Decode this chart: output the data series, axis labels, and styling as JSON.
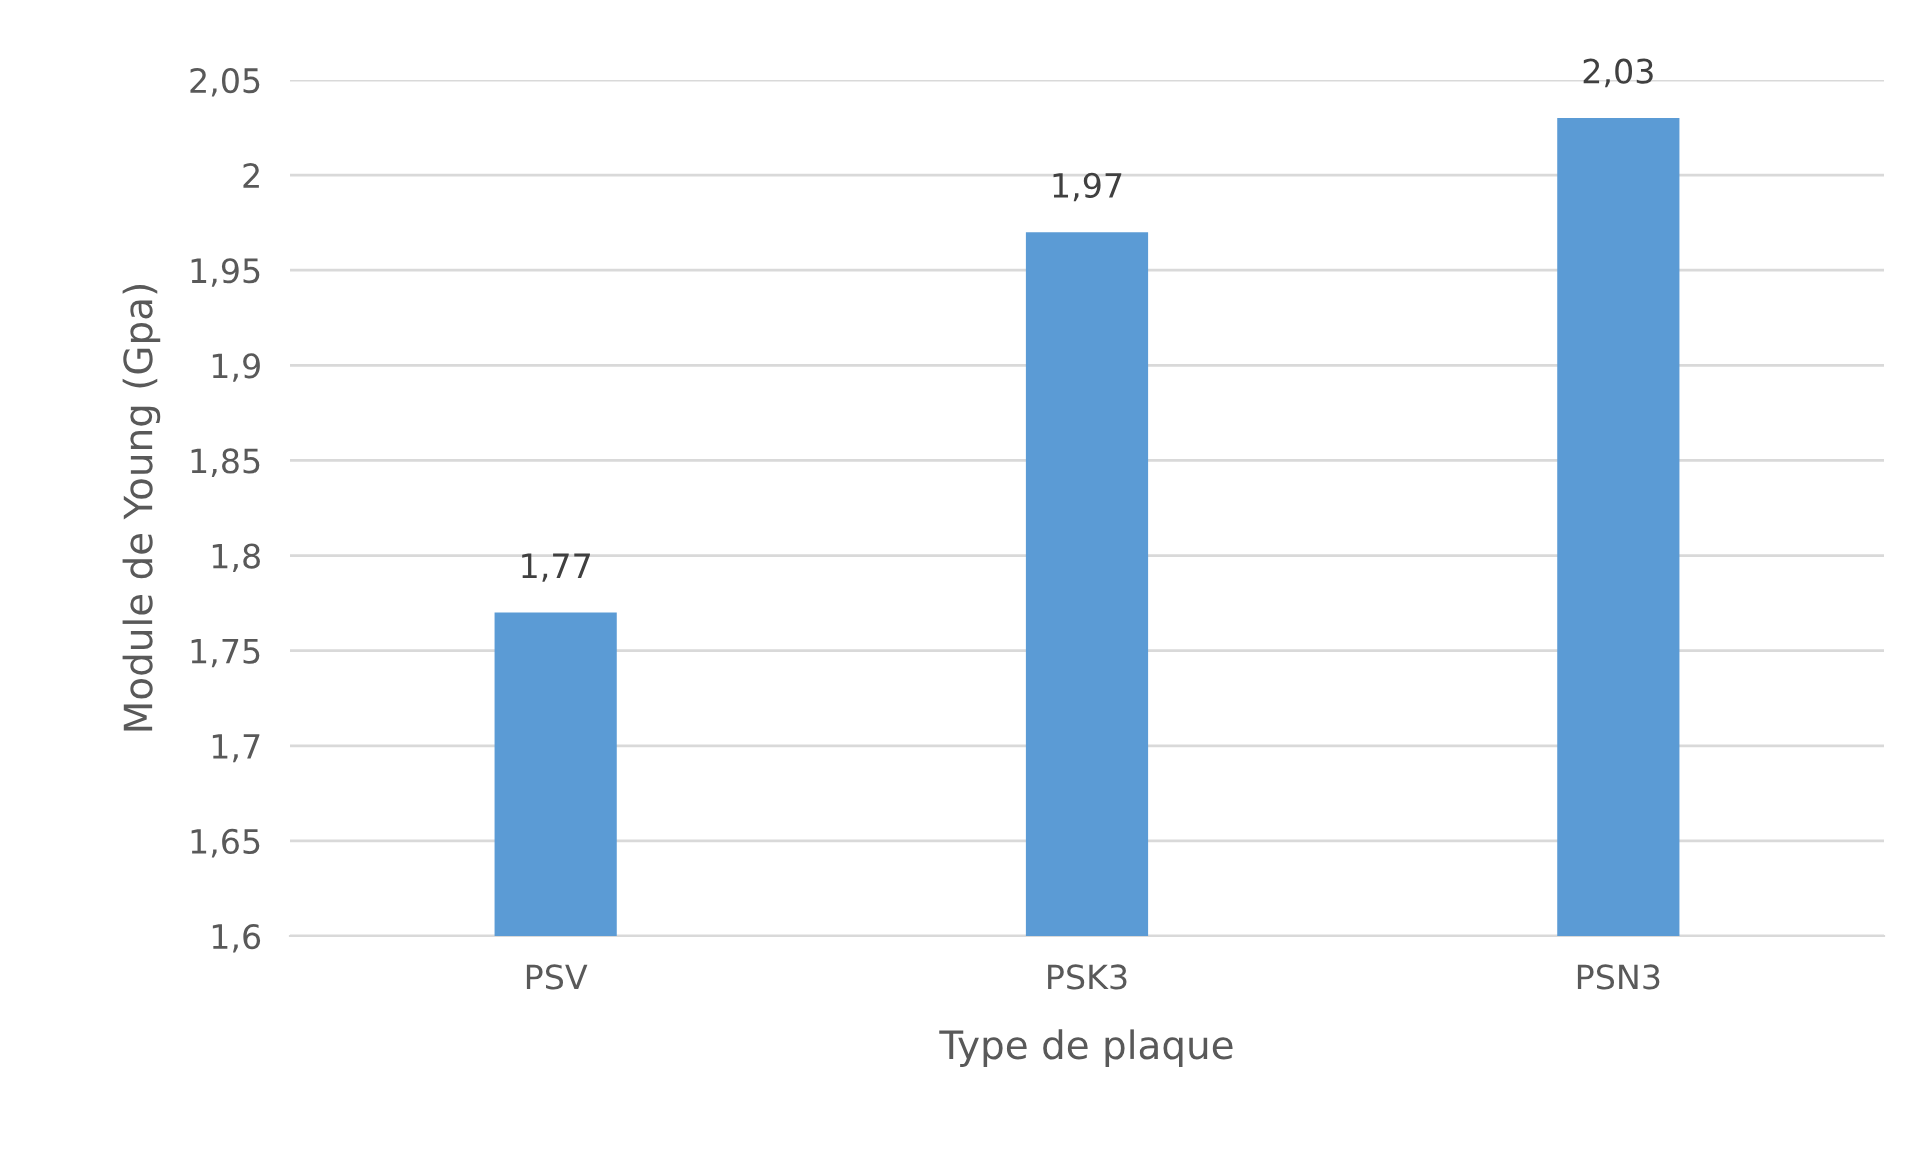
{
  "chart_data": {
    "type": "bar",
    "xlabel": "Type de plaque",
    "ylabel": "Module de Young (Gpa)",
    "categories": [
      "PSV",
      "PSK3",
      "PSN3"
    ],
    "values": [
      1.77,
      1.97,
      2.03
    ],
    "value_labels": [
      "1,77",
      "1,97",
      "2,03"
    ],
    "color": "#5b9bd5",
    "ylim": [
      1.6,
      2.05
    ],
    "yticks": [
      {
        "value": 1.6,
        "label": "1,6"
      },
      {
        "value": 1.65,
        "label": "1,65"
      },
      {
        "value": 1.7,
        "label": "1,7"
      },
      {
        "value": 1.75,
        "label": "1,75"
      },
      {
        "value": 1.8,
        "label": "1,8"
      },
      {
        "value": 1.85,
        "label": "1,85"
      },
      {
        "value": 1.9,
        "label": "1,9"
      },
      {
        "value": 1.95,
        "label": "1,95"
      },
      {
        "value": 2,
        "label": "2"
      },
      {
        "value": 2.05,
        "label": "2,05"
      }
    ],
    "grid": "y",
    "legend": false
  }
}
